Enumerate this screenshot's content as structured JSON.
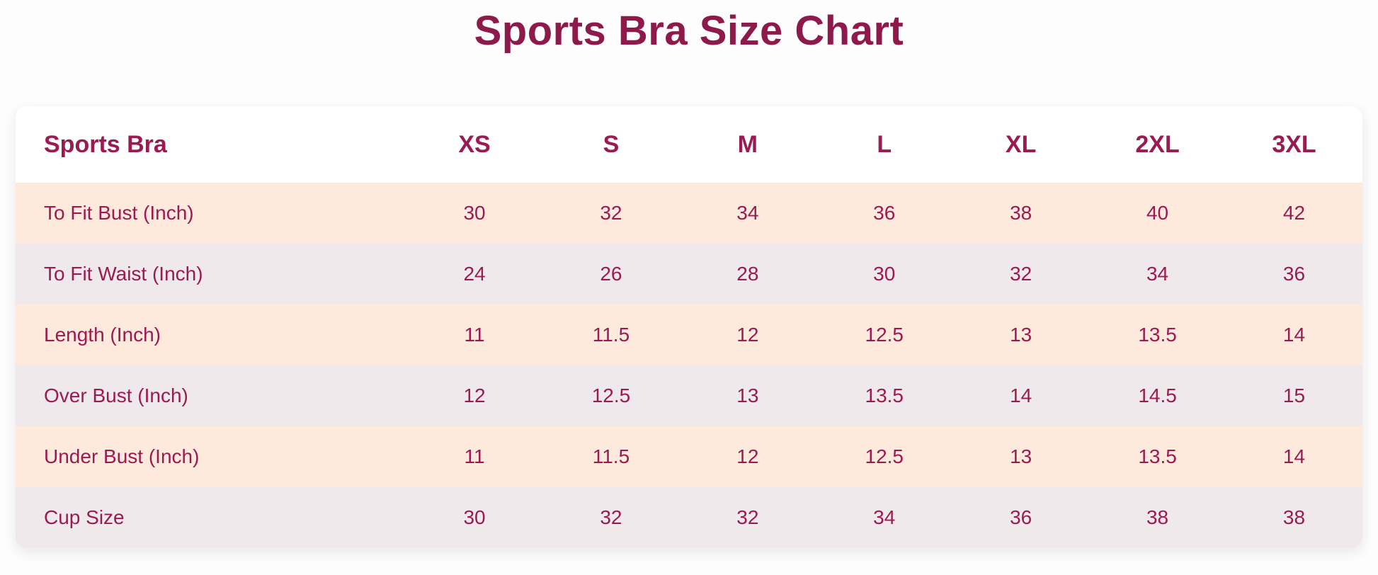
{
  "page": {
    "title": "Sports Bra Size Chart"
  },
  "colors": {
    "title_text": "#8e1a4b",
    "table_text": "#9a1b51",
    "row_peach": "#fdeadd",
    "row_lavender": "#f0e9ec",
    "header_background": "#ffffff",
    "page_background": "#fdfdfd"
  },
  "table": {
    "header": {
      "label": "Sports Bra",
      "sizes": [
        "XS",
        "S",
        "M",
        "L",
        "XL",
        "2XL",
        "3XL"
      ]
    },
    "rows": [
      {
        "label": "To Fit Bust (Inch)",
        "values": [
          "30",
          "32",
          "34",
          "36",
          "38",
          "40",
          "42"
        ]
      },
      {
        "label": "To Fit Waist (Inch)",
        "values": [
          "24",
          "26",
          "28",
          "30",
          "32",
          "34",
          "36"
        ]
      },
      {
        "label": "Length (Inch)",
        "values": [
          "11",
          "11.5",
          "12",
          "12.5",
          "13",
          "13.5",
          "14"
        ]
      },
      {
        "label": "Over Bust (Inch)",
        "values": [
          "12",
          "12.5",
          "13",
          "13.5",
          "14",
          "14.5",
          "15"
        ]
      },
      {
        "label": "Under Bust (Inch)",
        "values": [
          "11",
          "11.5",
          "12",
          "12.5",
          "13",
          "13.5",
          "14"
        ]
      },
      {
        "label": "Cup Size",
        "values": [
          "30",
          "32",
          "32",
          "34",
          "36",
          "38",
          "38"
        ]
      }
    ]
  },
  "chart_data": {
    "type": "table",
    "title": "Sports Bra Size Chart",
    "columns": [
      "Sports Bra",
      "XS",
      "S",
      "M",
      "L",
      "XL",
      "2XL",
      "3XL"
    ],
    "rows": [
      [
        "To Fit Bust (Inch)",
        30,
        32,
        34,
        36,
        38,
        40,
        42
      ],
      [
        "To Fit Waist (Inch)",
        24,
        26,
        28,
        30,
        32,
        34,
        36
      ],
      [
        "Length (Inch)",
        11,
        11.5,
        12,
        12.5,
        13,
        13.5,
        14
      ],
      [
        "Over Bust (Inch)",
        12,
        12.5,
        13,
        13.5,
        14,
        14.5,
        15
      ],
      [
        "Under Bust (Inch)",
        11,
        11.5,
        12,
        12.5,
        13,
        13.5,
        14
      ],
      [
        "Cup Size",
        30,
        32,
        32,
        34,
        36,
        38,
        38
      ]
    ],
    "layout_hints": {
      "alternating_row_colors": [
        "#fdeadd",
        "#f0e9ec"
      ],
      "header_row_background": "#ffffff",
      "text_color": "#9a1b51",
      "units": "inches"
    }
  }
}
